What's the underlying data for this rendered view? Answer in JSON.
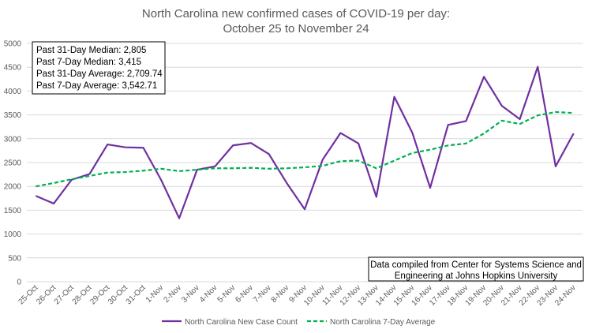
{
  "chart_data": {
    "type": "line",
    "title": [
      "North Carolina new confirmed cases of COVID-19 per day:",
      "October 25 to November 24"
    ],
    "categories": [
      "25-Oct",
      "26-Oct",
      "27-Oct",
      "28-Oct",
      "29-Oct",
      "30-Oct",
      "31-Oct",
      "1-Nov",
      "2-Nov",
      "3-Nov",
      "4-Nov",
      "5-Nov",
      "6-Nov",
      "7-Nov",
      "8-Nov",
      "9-Nov",
      "10-Nov",
      "11-Nov",
      "12-Nov",
      "13-Nov",
      "14-Nov",
      "15-Nov",
      "16-Nov",
      "17-Nov",
      "18-Nov",
      "19-Nov",
      "20-Nov",
      "21-Nov",
      "22-Nov",
      "23-Nov",
      "24-Nov"
    ],
    "ylim": [
      0,
      5000
    ],
    "yticks": [
      "0",
      "500",
      "1000",
      "1500",
      "2000",
      "2500",
      "3000",
      "3500",
      "4000",
      "4500",
      "5000"
    ],
    "grid": true,
    "legend_position": "bottom",
    "series": [
      {
        "name": "North Carolina New Case Count",
        "color": "#7030a0",
        "style": "solid",
        "values": [
          1800,
          1640,
          2140,
          2260,
          2880,
          2820,
          2810,
          2130,
          1330,
          2350,
          2420,
          2860,
          2910,
          2680,
          2070,
          1520,
          2560,
          3120,
          2900,
          1780,
          3880,
          3130,
          1970,
          3290,
          3370,
          4300,
          3690,
          3410,
          4510,
          2420,
          3110
        ]
      },
      {
        "name": "North Carolina 7-Day Average",
        "color": "#00b050",
        "style": "dashed",
        "values": [
          2000,
          2070,
          2150,
          2220,
          2290,
          2300,
          2330,
          2370,
          2320,
          2350,
          2380,
          2380,
          2390,
          2370,
          2380,
          2400,
          2430,
          2530,
          2540,
          2380,
          2540,
          2700,
          2770,
          2860,
          2900,
          3110,
          3380,
          3310,
          3490,
          3560,
          3540
        ]
      }
    ],
    "annotations": {
      "stats": [
        "Past 31-Day Median: 2,805",
        "Past 7-Day Median: 3,415",
        "Past 31-Day Average: 2,709.74",
        "Past 7-Day Average: 3,542.71"
      ],
      "source": [
        "Data compiled from Center for Systems Science and",
        "Engineering at Johns Hopkins University"
      ]
    }
  }
}
